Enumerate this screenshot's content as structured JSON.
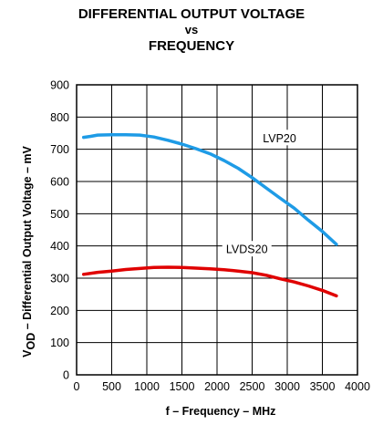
{
  "chart_data": {
    "type": "line",
    "title_lines": [
      "DIFFERENTIAL OUTPUT VOLTAGE",
      "vs",
      "FREQUENCY"
    ],
    "xlabel": "f – Frequency – MHz",
    "ylabel_main": "V",
    "ylabel_sub": "OD",
    "ylabel_rest": " – Differential Output Voltage – mV",
    "xlim": [
      0,
      4000
    ],
    "ylim": [
      0,
      900
    ],
    "x_ticks": [
      "0",
      "500",
      "1000",
      "1500",
      "2000",
      "2500",
      "3000",
      "3500",
      "4000"
    ],
    "y_ticks": [
      "0",
      "100",
      "200",
      "300",
      "400",
      "500",
      "600",
      "700",
      "800",
      "900"
    ],
    "grid": true,
    "series": [
      {
        "name": "LVP20",
        "color": "#1e9be6",
        "x": [
          100,
          200,
          300,
          500,
          700,
          900,
          1100,
          1300,
          1500,
          1700,
          1900,
          2100,
          2300,
          2500,
          2700,
          2900,
          3100,
          3300,
          3500,
          3700
        ],
        "y": [
          737,
          740,
          744,
          745,
          745,
          744,
          738,
          728,
          716,
          702,
          686,
          665,
          641,
          612,
          580,
          548,
          517,
          480,
          445,
          405
        ]
      },
      {
        "name": "LVDS20",
        "color": "#e00000",
        "x": [
          100,
          300,
          500,
          700,
          900,
          1100,
          1300,
          1500,
          1700,
          1900,
          2100,
          2300,
          2500,
          2700,
          2900,
          3100,
          3300,
          3500,
          3700
        ],
        "y": [
          312,
          318,
          322,
          327,
          330,
          333,
          334,
          333,
          331,
          329,
          326,
          322,
          317,
          309,
          298,
          288,
          276,
          262,
          245
        ]
      }
    ]
  }
}
